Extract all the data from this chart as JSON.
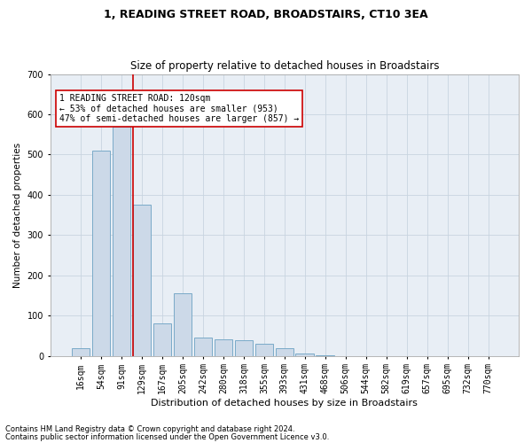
{
  "title1": "1, READING STREET ROAD, BROADSTAIRS, CT10 3EA",
  "title2": "Size of property relative to detached houses in Broadstairs",
  "xlabel": "Distribution of detached houses by size in Broadstairs",
  "ylabel": "Number of detached properties",
  "bar_labels": [
    "16sqm",
    "54sqm",
    "91sqm",
    "129sqm",
    "167sqm",
    "205sqm",
    "242sqm",
    "280sqm",
    "318sqm",
    "355sqm",
    "393sqm",
    "431sqm",
    "468sqm",
    "506sqm",
    "544sqm",
    "582sqm",
    "619sqm",
    "657sqm",
    "695sqm",
    "732sqm",
    "770sqm"
  ],
  "bar_values": [
    18,
    510,
    570,
    375,
    80,
    155,
    45,
    40,
    38,
    30,
    18,
    5,
    2,
    0,
    0,
    0,
    0,
    0,
    0,
    0,
    0
  ],
  "bar_color": "#ccd9e8",
  "bar_edge_color": "#7aaac8",
  "vline_color": "#cc0000",
  "vline_pos": 2.58,
  "ylim": [
    0,
    700
  ],
  "yticks": [
    0,
    100,
    200,
    300,
    400,
    500,
    600,
    700
  ],
  "annotation_text": "1 READING STREET ROAD: 120sqm\n← 53% of detached houses are smaller (953)\n47% of semi-detached houses are larger (857) →",
  "annotation_box_color": "#ffffff",
  "annotation_box_edge": "#cc0000",
  "footnote1": "Contains HM Land Registry data © Crown copyright and database right 2024.",
  "footnote2": "Contains public sector information licensed under the Open Government Licence v3.0.",
  "bg_color": "#ffffff",
  "plot_bg_color": "#e8eef5",
  "grid_color": "#c8d4e0",
  "title1_fontsize": 9,
  "title2_fontsize": 8.5,
  "xlabel_fontsize": 8,
  "ylabel_fontsize": 7.5,
  "tick_fontsize": 7,
  "annot_fontsize": 7,
  "footnote_fontsize": 6
}
